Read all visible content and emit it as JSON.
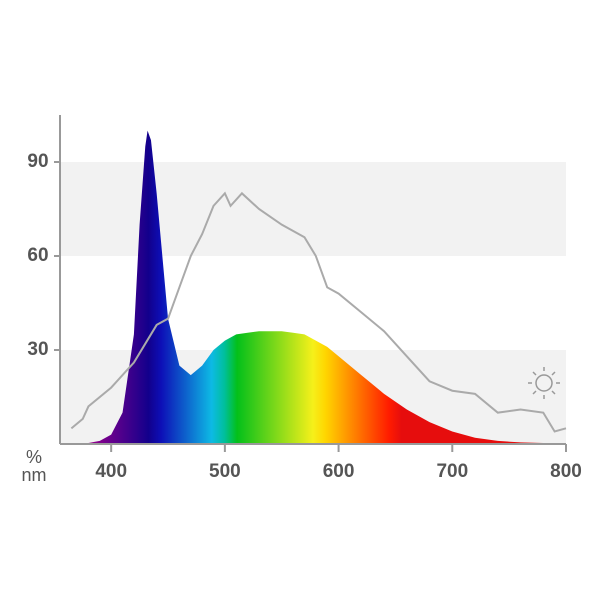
{
  "chart_data": {
    "type": "spectrum",
    "x_label": "nm",
    "y_label": "%",
    "xlim": [
      355,
      800
    ],
    "xticks": [
      400,
      500,
      600,
      700,
      800
    ],
    "ylim": [
      0,
      105
    ],
    "yticks": [
      30,
      60,
      90
    ],
    "grid": "bands",
    "series": [
      {
        "kind": "area",
        "color": "spectral",
        "x": [
          360,
          370,
          380,
          390,
          400,
          410,
          420,
          425,
          430,
          432,
          435,
          440,
          450,
          460,
          470,
          480,
          490,
          500,
          510,
          520,
          530,
          540,
          550,
          560,
          570,
          580,
          590,
          600,
          620,
          640,
          660,
          680,
          700,
          720,
          740,
          760,
          780,
          800
        ],
        "values": [
          0,
          0,
          0.3,
          1,
          3,
          10,
          35,
          70,
          95,
          100,
          97,
          80,
          40,
          25,
          22,
          25,
          30,
          33,
          35,
          35.5,
          36,
          36,
          36,
          35.5,
          35,
          33,
          31,
          28,
          22,
          16,
          11,
          7,
          4,
          2,
          1,
          0.5,
          0.3,
          0
        ]
      },
      {
        "kind": "line",
        "color": "#aaaaaa",
        "x": [
          365,
          375,
          380,
          400,
          410,
          420,
          440,
          450,
          460,
          470,
          480,
          490,
          500,
          505,
          515,
          530,
          550,
          570,
          580,
          590,
          600,
          620,
          640,
          660,
          680,
          700,
          720,
          740,
          760,
          780,
          790,
          800
        ],
        "values": [
          5,
          8,
          12,
          18,
          22,
          26,
          38,
          40,
          50,
          60,
          67,
          76,
          80,
          76,
          80,
          75,
          70,
          66,
          60,
          50,
          48,
          42,
          36,
          28,
          20,
          17,
          16,
          10,
          11,
          10,
          4,
          5
        ]
      }
    ]
  }
}
